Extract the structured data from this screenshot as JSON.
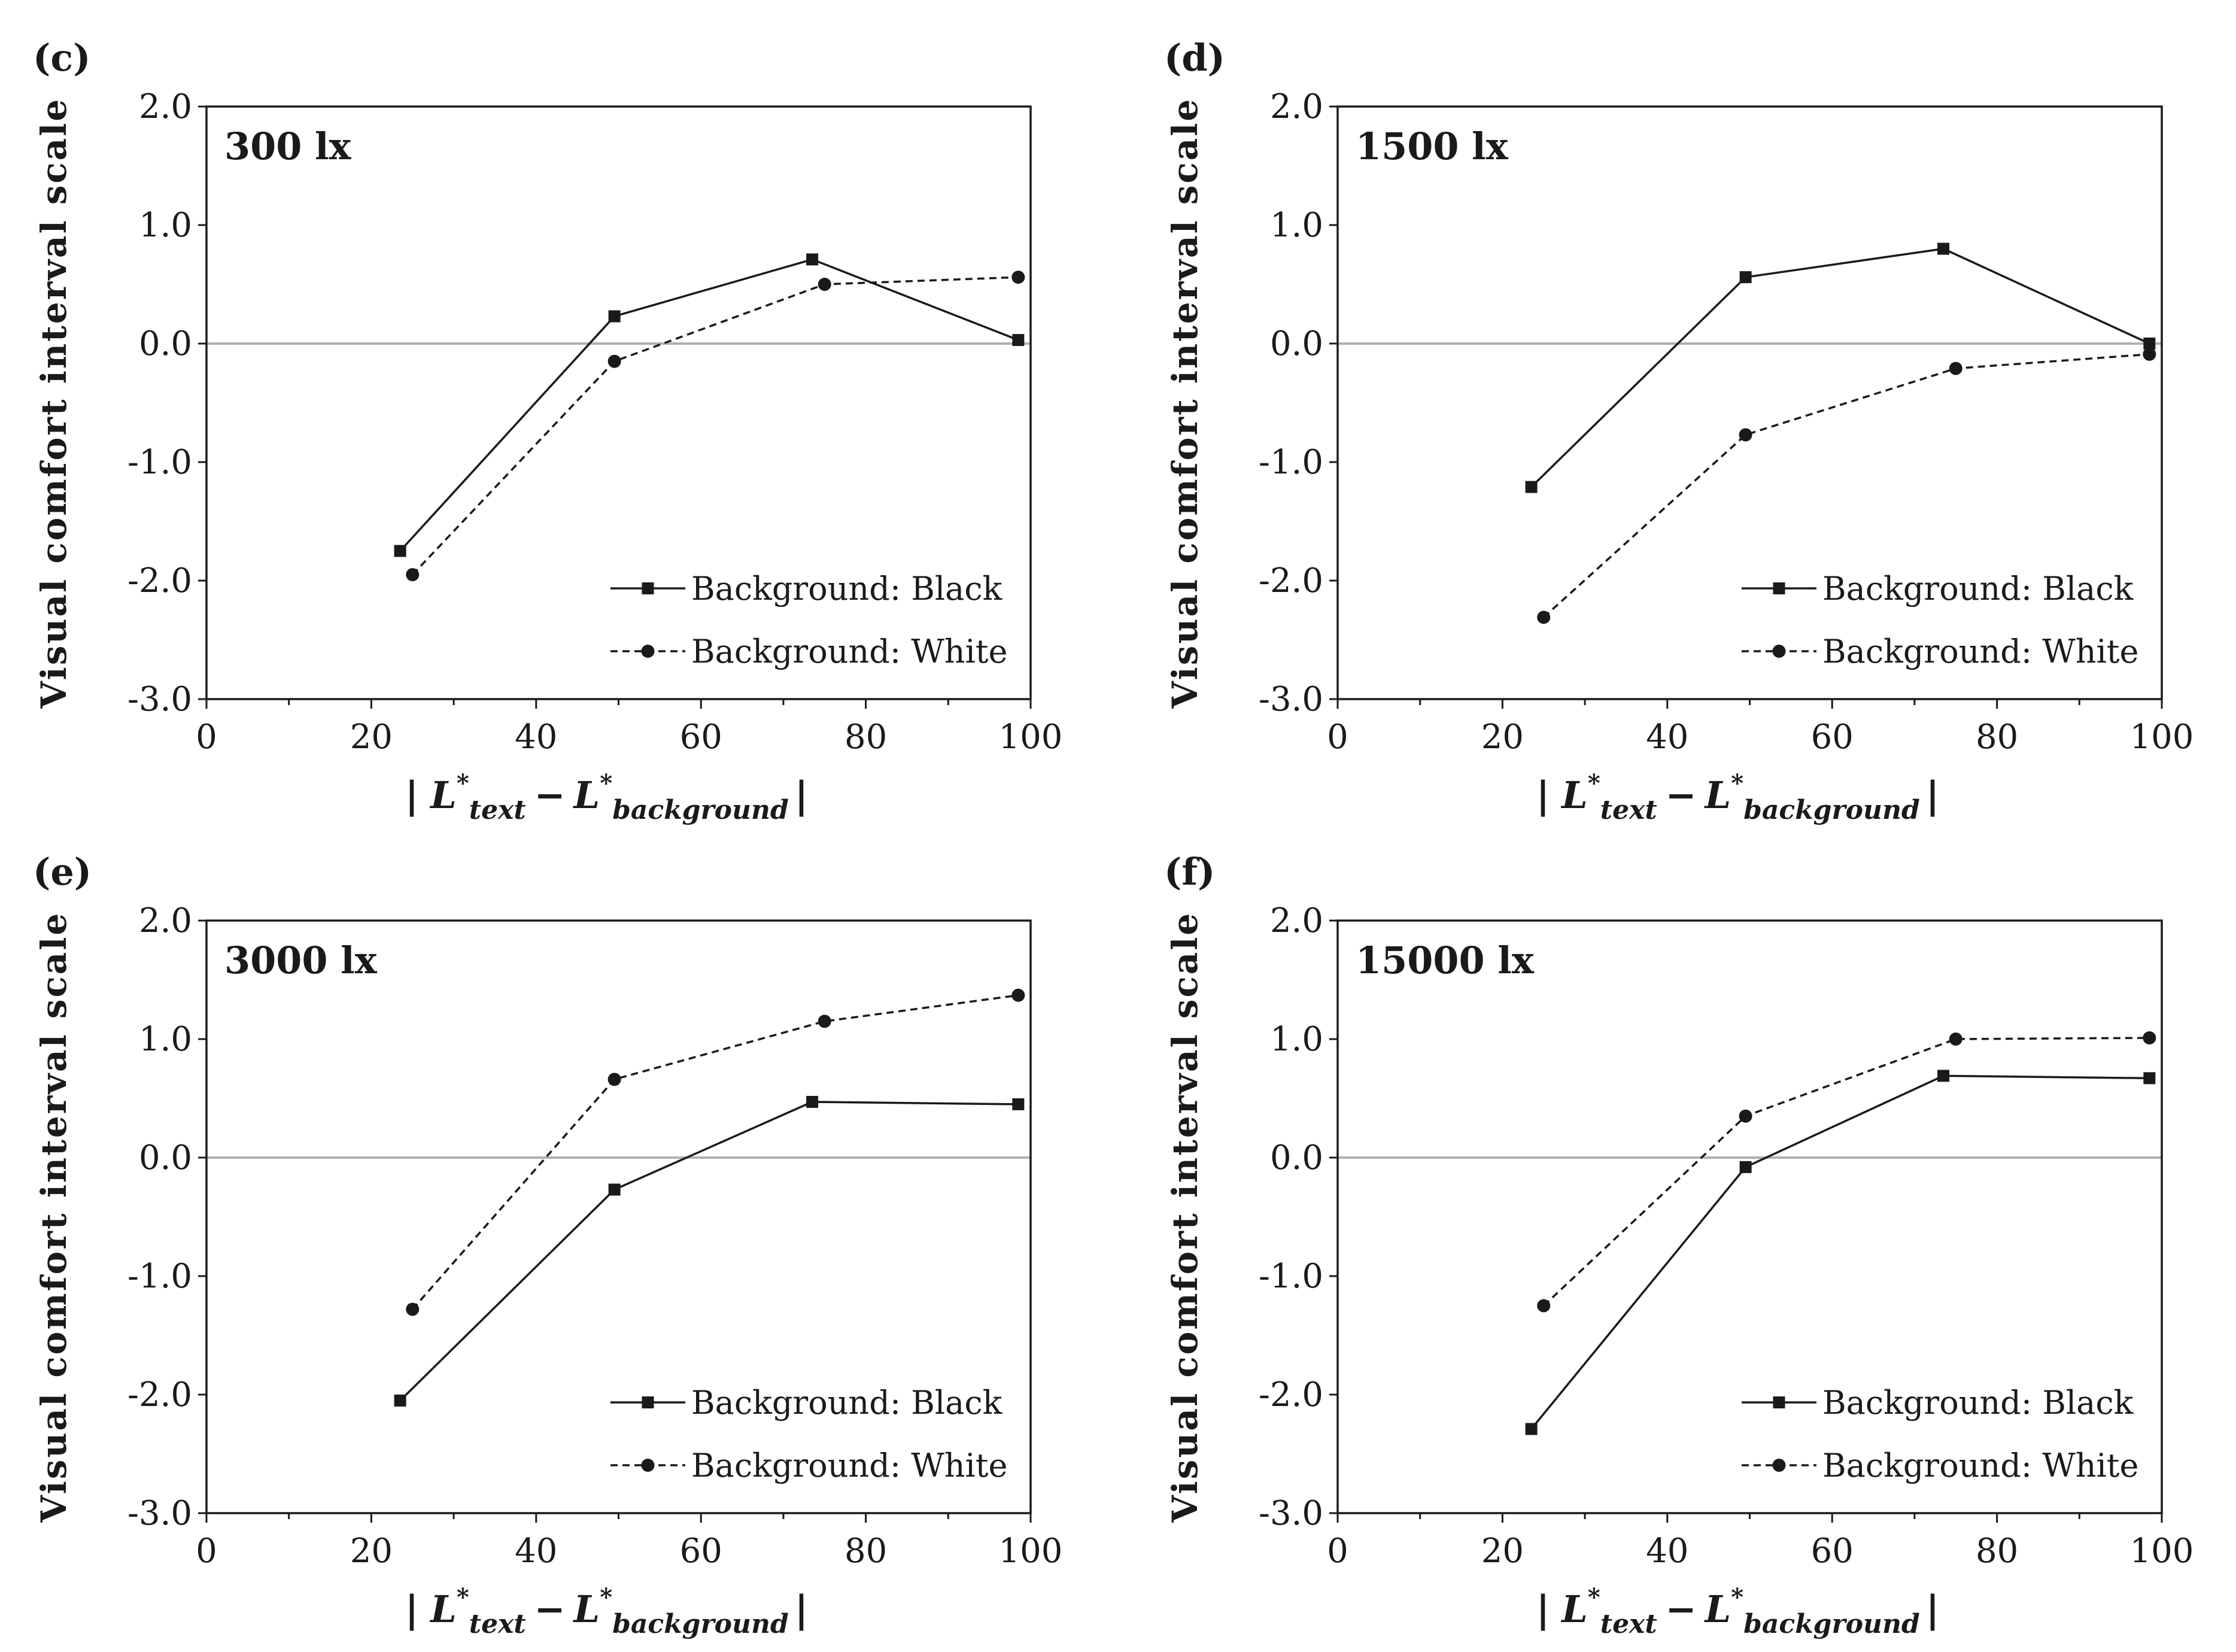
{
  "chart_data": [
    {
      "type": "line",
      "panel": "(c)",
      "title": "300 lx",
      "xlabel": {
        "bar_left": "|",
        "base1": "L",
        "sup1": "*",
        "sub1": "text",
        "minus": "−",
        "base2": "L",
        "sup2": "*",
        "sub2": "background",
        "bar_right": "|"
      },
      "ylabel": "Visual comfort interval scale",
      "xlim": [
        0,
        100
      ],
      "ylim": [
        -3.0,
        2.0
      ],
      "xticks": [
        "0",
        "20",
        "40",
        "60",
        "80",
        "100"
      ],
      "yticks": [
        "2.0",
        "1.0",
        "0.0",
        "-1.0",
        "-2.0",
        "-3.0"
      ],
      "series": [
        {
          "name": "Background: Black",
          "marker": "square",
          "dash": "solid",
          "x": [
            23.5,
            49.5,
            73.5,
            98.5
          ],
          "y": [
            -1.75,
            0.23,
            0.71,
            0.03
          ]
        },
        {
          "name": "Background: White",
          "marker": "circle",
          "dash": "dashed",
          "x": [
            25,
            49.5,
            75,
            98.5
          ],
          "y": [
            -1.95,
            -0.15,
            0.5,
            0.56
          ]
        }
      ]
    },
    {
      "type": "line",
      "panel": "(d)",
      "title": "1500 lx",
      "xlabel": {
        "bar_left": "|",
        "base1": "L",
        "sup1": "*",
        "sub1": "text",
        "minus": "−",
        "base2": "L",
        "sup2": "*",
        "sub2": "background",
        "bar_right": "|"
      },
      "ylabel": "Visual comfort interval scale",
      "xlim": [
        0,
        100
      ],
      "ylim": [
        -3.0,
        2.0
      ],
      "xticks": [
        "0",
        "20",
        "40",
        "60",
        "80",
        "100"
      ],
      "yticks": [
        "2.0",
        "1.0",
        "0.0",
        "-1.0",
        "-2.0",
        "-3.0"
      ],
      "series": [
        {
          "name": "Background: Black",
          "marker": "square",
          "dash": "solid",
          "x": [
            23.5,
            49.5,
            73.5,
            98.5
          ],
          "y": [
            -1.21,
            0.56,
            0.8,
            0.0
          ]
        },
        {
          "name": "Background: White",
          "marker": "circle",
          "dash": "dashed",
          "x": [
            25,
            49.5,
            75,
            98.5
          ],
          "y": [
            -2.31,
            -0.77,
            -0.21,
            -0.09
          ]
        }
      ]
    },
    {
      "type": "line",
      "panel": "(e)",
      "title": "3000 lx",
      "xlabel": {
        "bar_left": "|",
        "base1": "L",
        "sup1": "*",
        "sub1": "text",
        "minus": "−",
        "base2": "L",
        "sup2": "*",
        "sub2": "background",
        "bar_right": "|"
      },
      "ylabel": "Visual comfort interval scale",
      "xlim": [
        0,
        100
      ],
      "ylim": [
        -3.0,
        2.0
      ],
      "xticks": [
        "0",
        "20",
        "40",
        "60",
        "80",
        "100"
      ],
      "yticks": [
        "2.0",
        "1.0",
        "0.0",
        "-1.0",
        "-2.0",
        "-3.0"
      ],
      "series": [
        {
          "name": "Background: Black",
          "marker": "square",
          "dash": "solid",
          "x": [
            23.5,
            49.5,
            73.5,
            98.5
          ],
          "y": [
            -2.05,
            -0.27,
            0.47,
            0.45
          ]
        },
        {
          "name": "Background: White",
          "marker": "circle",
          "dash": "dashed",
          "x": [
            25,
            49.5,
            75,
            98.5
          ],
          "y": [
            -1.28,
            0.66,
            1.15,
            1.37
          ]
        }
      ]
    },
    {
      "type": "line",
      "panel": "(f)",
      "title": "15000 lx",
      "xlabel": {
        "bar_left": "|",
        "base1": "L",
        "sup1": "*",
        "sub1": "text",
        "minus": "−",
        "base2": "L",
        "sup2": "*",
        "sub2": "background",
        "bar_right": "|"
      },
      "ylabel": "Visual comfort interval scale",
      "xlim": [
        0,
        100
      ],
      "ylim": [
        -3.0,
        2.0
      ],
      "xticks": [
        "0",
        "20",
        "40",
        "60",
        "80",
        "100"
      ],
      "yticks": [
        "2.0",
        "1.0",
        "0.0",
        "-1.0",
        "-2.0",
        "-3.0"
      ],
      "series": [
        {
          "name": "Background: Black",
          "marker": "square",
          "dash": "solid",
          "x": [
            23.5,
            49.5,
            73.5,
            98.5
          ],
          "y": [
            -2.29,
            -0.08,
            0.69,
            0.67
          ]
        },
        {
          "name": "Background: White",
          "marker": "circle",
          "dash": "dashed",
          "x": [
            25,
            49.5,
            75,
            98.5
          ],
          "y": [
            -1.25,
            0.35,
            1.0,
            1.01
          ]
        }
      ]
    }
  ],
  "colors": {
    "line": "#1a1a1a",
    "zero_line": "#b0b0b0",
    "axis": "#1a1a1a"
  }
}
